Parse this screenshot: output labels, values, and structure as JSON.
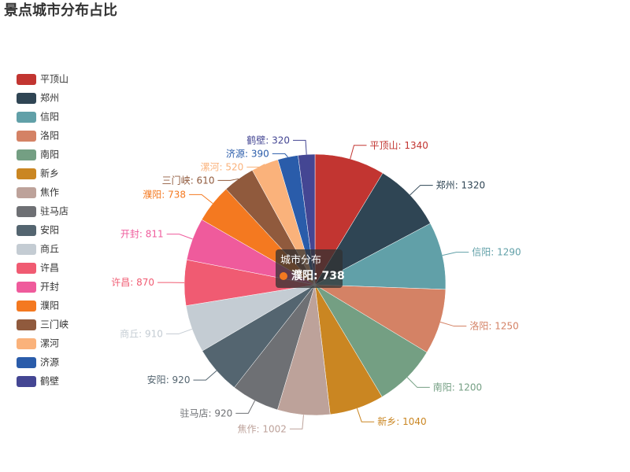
{
  "chart_data": {
    "type": "pie",
    "title": "景点城市分布占比",
    "categories": [
      "平顶山",
      "郑州",
      "信阳",
      "洛阳",
      "南阳",
      "新乡",
      "焦作",
      "驻马店",
      "安阳",
      "商丘",
      "许昌",
      "开封",
      "濮阳",
      "三门峡",
      "漯河",
      "济源",
      "鹤壁"
    ],
    "values": [
      1340,
      1320,
      1290,
      1250,
      1200,
      1040,
      1002,
      920,
      920,
      910,
      870,
      811,
      738,
      610,
      520,
      390,
      320
    ],
    "colors": [
      "#c23531",
      "#2f4554",
      "#61a0a8",
      "#d48265",
      "#749f83",
      "#ca8622",
      "#bda29a",
      "#6e7074",
      "#546570",
      "#c4ccd3",
      "#f05b72",
      "#ef5b9c",
      "#f47920",
      "#905a3d",
      "#fab27b",
      "#2a5caa",
      "#444693"
    ],
    "legend": "left",
    "tooltip": {
      "title": "城市分布",
      "name": "濮阳",
      "value": 738,
      "color": "#f47920"
    }
  }
}
